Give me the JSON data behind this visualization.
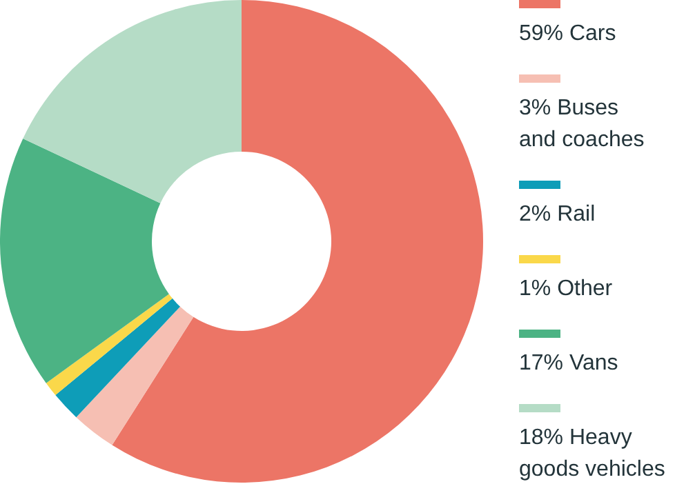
{
  "chart_data": {
    "type": "donut",
    "categories": [
      "59% Cars",
      "3% Buses and coaches",
      "2% Rail",
      "1% Other",
      "17% Vans",
      "18% Heavy goods vehicles"
    ],
    "values": [
      59,
      3,
      2,
      1,
      17,
      18
    ],
    "colors": [
      "#ec7566",
      "#f6bfb3",
      "#0e9db8",
      "#fad84a",
      "#4cb384",
      "#b5dcc6"
    ],
    "legend": "right"
  }
}
